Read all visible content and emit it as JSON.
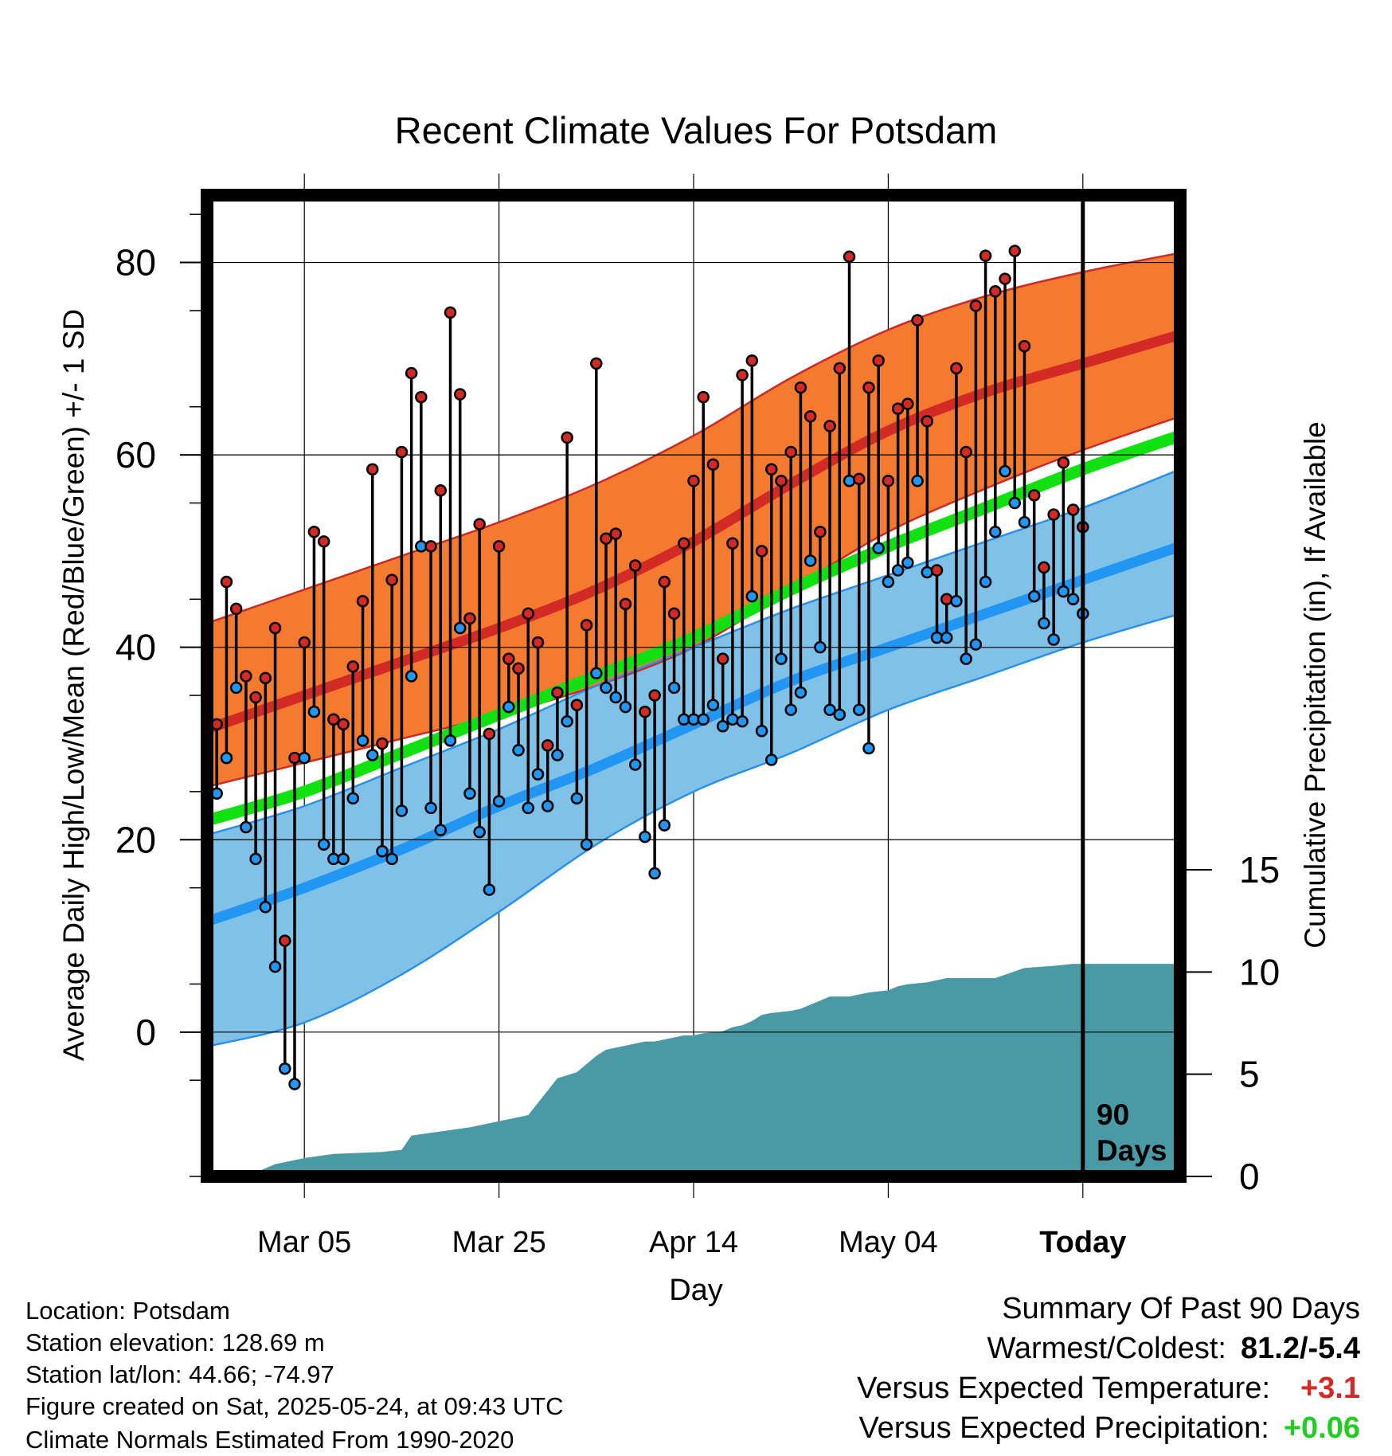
{
  "chart_data": {
    "type": "line",
    "title": "Recent Climate Values For Potsdam",
    "xlabel": "Day",
    "ylabel": "Average Daily High/Low/Mean (Red/Blue/Green) +/- 1 SD",
    "y2label": "Cumulative Precipitation (in), If Available",
    "x_ticks": [
      "Mar 05",
      "Mar 25",
      "Apr 14",
      "May 04",
      "Today"
    ],
    "x_tick_days": [
      10,
      30,
      50,
      70,
      90
    ],
    "xlim": [
      0,
      100
    ],
    "y_ticks": [
      0,
      20,
      40,
      60,
      80
    ],
    "ylim": [
      -15,
      87
    ],
    "y2_ticks": [
      0,
      5,
      10,
      15
    ],
    "y2lim": [
      0,
      48
    ],
    "today_marker_label": [
      "90",
      "Days"
    ],
    "normals": {
      "days": [
        0,
        10,
        20,
        30,
        40,
        50,
        60,
        70,
        80,
        90,
        100
      ],
      "high_upper": [
        42.5,
        46.0,
        49.5,
        53.0,
        57.0,
        62.0,
        68.0,
        73.0,
        76.5,
        79.0,
        81.0
      ],
      "high_mean": [
        31.5,
        35.0,
        38.5,
        42.0,
        46.0,
        51.0,
        57.0,
        62.5,
        66.5,
        69.5,
        72.5
      ],
      "high_lower": [
        25.5,
        28.0,
        30.5,
        33.0,
        36.0,
        40.0,
        46.0,
        52.0,
        56.5,
        60.5,
        64.0
      ],
      "mean": [
        22.0,
        25.0,
        29.0,
        33.0,
        37.0,
        41.0,
        46.0,
        50.5,
        54.5,
        58.5,
        62.0
      ],
      "low_upper": [
        20.5,
        23.5,
        27.5,
        31.5,
        36.0,
        40.0,
        44.0,
        47.5,
        51.0,
        54.5,
        58.5
      ],
      "low_mean": [
        11.5,
        15.0,
        19.0,
        23.5,
        27.5,
        32.0,
        36.5,
        40.0,
        43.5,
        47.0,
        50.5
      ],
      "low_lower": [
        -1.5,
        1.0,
        6.0,
        12.5,
        19.5,
        25.0,
        29.0,
        33.5,
        37.0,
        40.5,
        43.5
      ]
    },
    "observed": {
      "days": [
        1,
        2,
        3,
        4,
        5,
        6,
        7,
        8,
        9,
        10,
        11,
        12,
        13,
        14,
        15,
        16,
        17,
        18,
        19,
        20,
        21,
        22,
        23,
        24,
        25,
        26,
        27,
        28,
        29,
        30,
        31,
        32,
        33,
        34,
        35,
        36,
        37,
        38,
        39,
        40,
        41,
        42,
        43,
        44,
        45,
        46,
        47,
        48,
        49,
        50,
        51,
        52,
        53,
        54,
        55,
        56,
        57,
        58,
        59,
        60,
        61,
        62,
        63,
        64,
        65,
        66,
        67,
        68,
        69,
        70,
        71,
        72,
        73,
        74,
        75,
        76,
        77,
        78,
        79,
        80,
        81,
        82,
        83,
        84,
        85,
        86,
        87,
        88,
        89,
        90
      ],
      "high": [
        32.0,
        46.8,
        44.0,
        37.0,
        34.8,
        36.8,
        42.0,
        9.5,
        28.5,
        40.5,
        52.0,
        51.0,
        32.5,
        32.0,
        38.0,
        44.8,
        58.5,
        30.0,
        47.0,
        60.3,
        68.5,
        66.0,
        50.5,
        56.3,
        74.8,
        66.3,
        43.0,
        52.8,
        31.0,
        50.5,
        38.8,
        37.8,
        43.5,
        40.5,
        29.8,
        35.3,
        61.8,
        34.0,
        42.3,
        69.5,
        51.3,
        51.8,
        44.5,
        48.5,
        33.3,
        35.0,
        46.8,
        43.5,
        50.8,
        57.3,
        66.0,
        59.0,
        38.8,
        50.8,
        68.3,
        69.8,
        50.0,
        58.5,
        57.3,
        60.3,
        67.0,
        64.0,
        52.0,
        63.0,
        69.0,
        80.6,
        57.5,
        67.0,
        69.8,
        57.3,
        64.8,
        65.3,
        74.0,
        63.5,
        48.0,
        45.0,
        69.0,
        60.3,
        75.5,
        80.7,
        77.0,
        78.3,
        81.2,
        71.3,
        55.8,
        48.3,
        53.8,
        59.2,
        54.3,
        52.5
      ],
      "low": [
        24.8,
        28.5,
        35.8,
        21.3,
        18.0,
        13.0,
        6.8,
        -3.8,
        -5.4,
        28.5,
        33.3,
        19.5,
        18.0,
        18.0,
        24.3,
        30.3,
        28.8,
        18.8,
        18.0,
        23.0,
        37.0,
        50.5,
        23.3,
        21.0,
        30.3,
        42.0,
        24.8,
        20.8,
        14.8,
        24.0,
        33.8,
        29.3,
        23.3,
        26.8,
        23.5,
        28.8,
        32.3,
        24.3,
        19.5,
        37.3,
        35.8,
        34.8,
        33.8,
        27.8,
        20.3,
        16.5,
        21.5,
        35.8,
        32.5,
        32.5,
        32.5,
        34.0,
        31.8,
        32.5,
        32.3,
        45.3,
        31.3,
        28.3,
        38.8,
        33.5,
        35.3,
        49.0,
        40.0,
        33.5,
        33.0,
        57.3,
        33.5,
        29.5,
        50.3,
        46.8,
        48.0,
        48.8,
        57.3,
        47.8,
        41.0,
        41.0,
        44.8,
        38.8,
        40.3,
        46.8,
        52.0,
        58.3,
        55.0,
        53.0,
        45.3,
        42.5,
        40.8,
        45.8,
        45.0,
        43.5
      ]
    },
    "precipitation": {
      "days": [
        0,
        4,
        7,
        10,
        13,
        18,
        20,
        21,
        24,
        27,
        29,
        30,
        33,
        35,
        36,
        38,
        40,
        41,
        43,
        45,
        46,
        49,
        50,
        51,
        53,
        54,
        55,
        56,
        57,
        58,
        60,
        61,
        63,
        64,
        66,
        67,
        68,
        70,
        71,
        72,
        74,
        75,
        76,
        81,
        84,
        87,
        89,
        92,
        100
      ],
      "values": [
        0,
        0,
        0.6,
        0.9,
        1.1,
        1.2,
        1.3,
        2.0,
        2.2,
        2.4,
        2.6,
        2.7,
        3.0,
        4.2,
        4.8,
        5.1,
        5.9,
        6.2,
        6.4,
        6.6,
        6.6,
        6.9,
        6.9,
        7.0,
        7.1,
        7.3,
        7.4,
        7.6,
        7.9,
        8.0,
        8.1,
        8.2,
        8.6,
        8.8,
        8.8,
        8.9,
        9.0,
        9.1,
        9.3,
        9.4,
        9.5,
        9.6,
        9.7,
        9.7,
        10.2,
        10.3,
        10.4,
        10.4,
        10.4
      ]
    }
  },
  "location_info": {
    "location": "Location: Potsdam",
    "elevation": "Station elevation: 128.69 m",
    "latlon": "Station lat/lon: 44.66; -74.97",
    "created": "Figure created on Sat, 2025-05-24, at 09:43 UTC",
    "normals": "Climate Normals Estimated From 1990-2020"
  },
  "summary": {
    "title": "Summary Of Past 90 Days",
    "warmest_coldest_label": "Warmest/Coldest:",
    "warmest_coldest_value": "81.2/-5.4",
    "temp_label": "Versus Expected Temperature:",
    "temp_value": "+3.1",
    "precip_label": "Versus Expected Precipitation:",
    "precip_value": "+0.06"
  },
  "colors": {
    "high_band": "#f47a30",
    "high_mean": "#d42a26",
    "high_edge": "#cc2a24",
    "mean": "#11e011",
    "low_band": "#80c1e8",
    "low_mean": "#2196f3",
    "low_edge": "#2a90e8",
    "overlap": "#8b1414",
    "precip": "#4a9aa5",
    "high_dot": "#d42a26",
    "low_dot": "#2196f3",
    "temp_value": "#d42a26",
    "precip_value": "#22cc22"
  }
}
